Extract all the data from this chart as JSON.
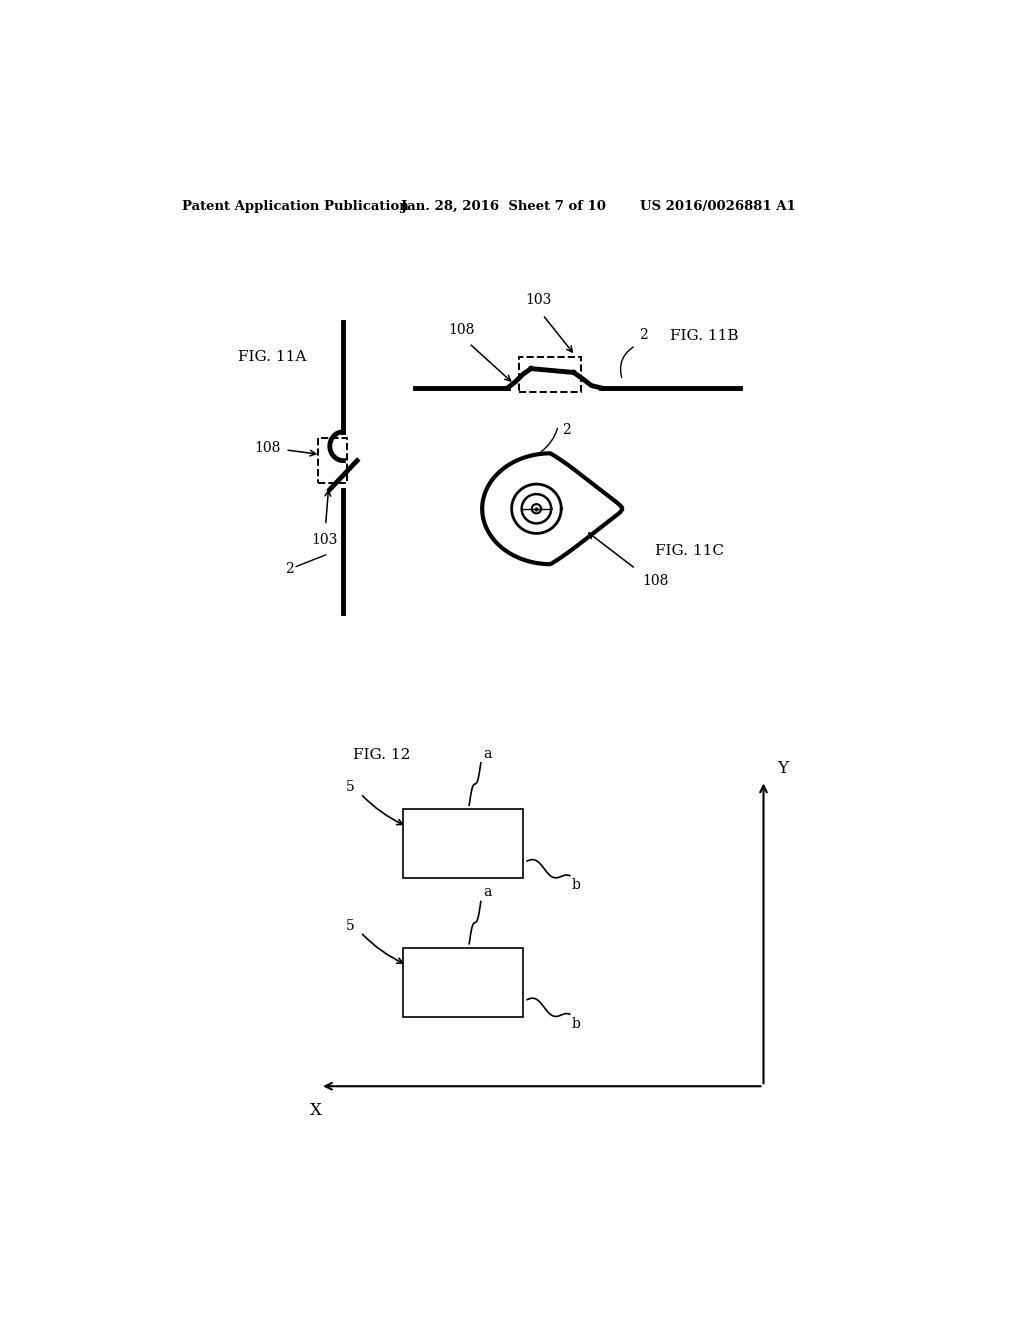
{
  "bg_color": "#ffffff",
  "header_left": "Patent Application Publication",
  "header_mid": "Jan. 28, 2016  Sheet 7 of 10",
  "header_right": "US 2016/0026881 A1",
  "fig11A_label": "FIG. 11A",
  "fig11B_label": "FIG. 11B",
  "fig11C_label": "FIG. 11C",
  "fig12_label": "FIG. 12"
}
